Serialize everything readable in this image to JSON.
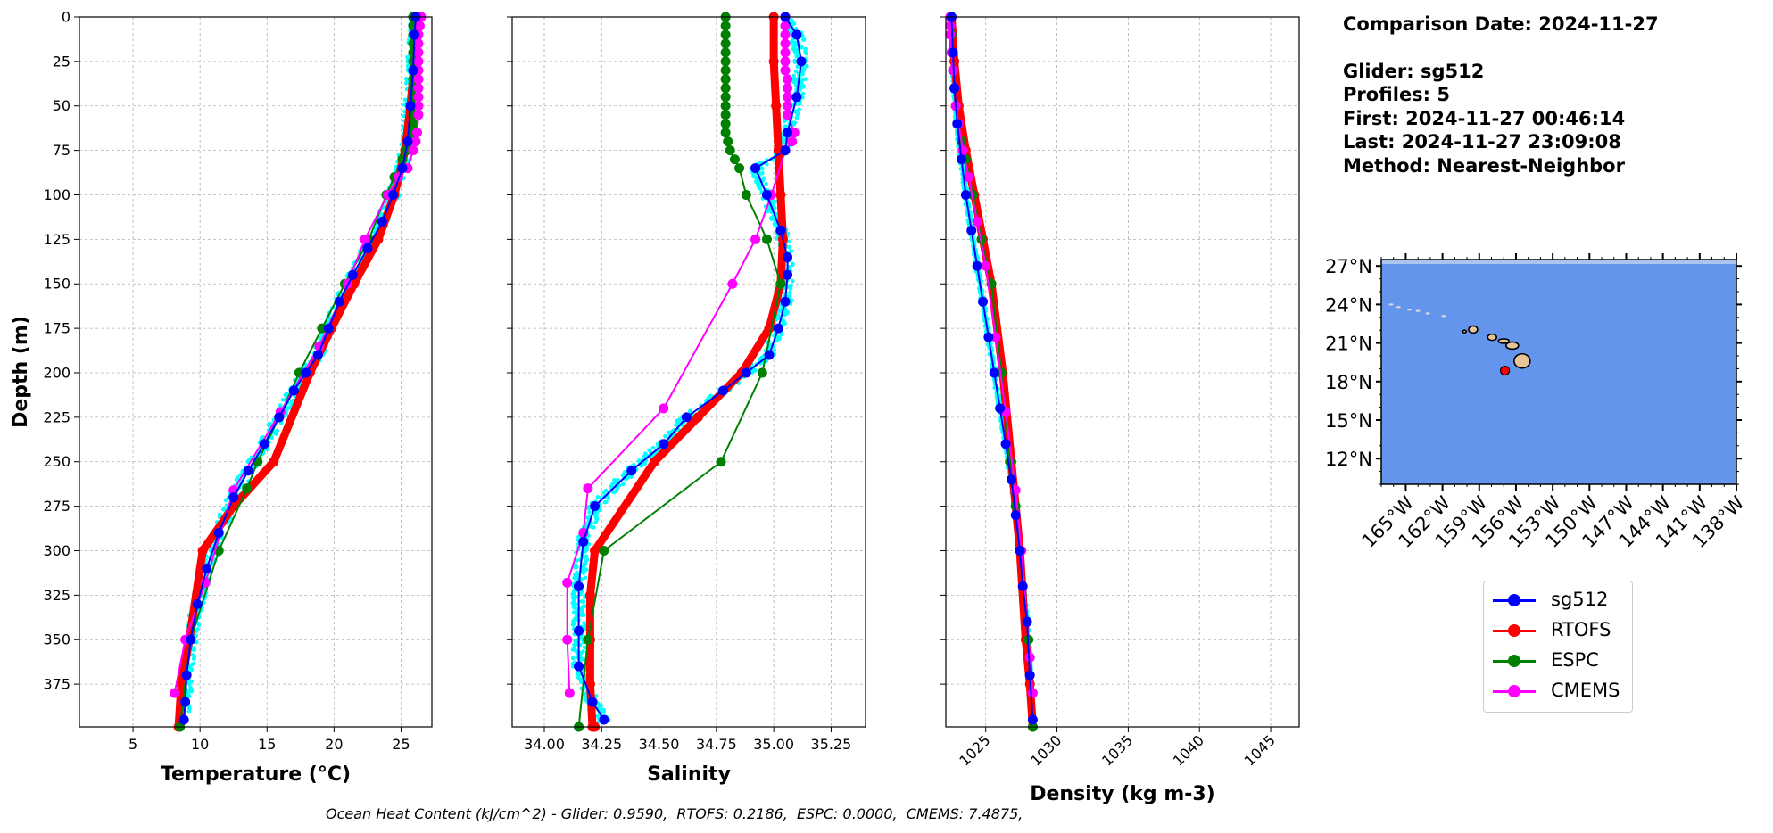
{
  "info": {
    "comparison_date": "Comparison Date: 2024-11-27",
    "glider": "Glider: sg512",
    "profiles": "Profiles: 5",
    "first": "First: 2024-11-27 00:46:14",
    "last": "Last: 2024-11-27 23:09:08",
    "method": "Method: Nearest-Neighbor"
  },
  "footer": "Ocean Heat Content (kJ/cm^2) - Glider: 0.9590,  RTOFS: 0.2186,  ESPC: 0.0000,  CMEMS: 7.4875,",
  "legend": [
    {
      "name": "sg512",
      "color": "#0000ff"
    },
    {
      "name": "RTOFS",
      "color": "#ff0000"
    },
    {
      "name": "ESPC",
      "color": "#008000"
    },
    {
      "name": "CMEMS",
      "color": "#ff00ff"
    }
  ],
  "colors": {
    "sg512": "#0000ff",
    "RTOFS": "#ff0000",
    "ESPC": "#008000",
    "CMEMS": "#ff00ff",
    "raw_glider": "#00ffff",
    "ocean": "#6495ed",
    "land": "#e8c49a"
  },
  "chart_data": [
    {
      "type": "line",
      "xlabel": "Temperature (°C)",
      "ylabel": "Depth (m)",
      "xlim": [
        1,
        27.3
      ],
      "ylim": [
        399,
        0
      ],
      "xticks": [
        "5",
        "10",
        "15",
        "20",
        "25"
      ],
      "yticks": [
        "0",
        "25",
        "50",
        "75",
        "100",
        "125",
        "150",
        "175",
        "200",
        "225",
        "250",
        "275",
        "300",
        "325",
        "350",
        "375"
      ],
      "grid": true,
      "series": [
        {
          "name": "sg512",
          "x": [
            26.1,
            26.0,
            25.9,
            25.7,
            25.5,
            25.1,
            24.4,
            23.6,
            22.5,
            21.4,
            20.4,
            19.6,
            18.8,
            17.9,
            17.0,
            15.9,
            14.8,
            13.6,
            12.5,
            11.4,
            10.5,
            9.8,
            9.3,
            9.0,
            8.9,
            8.8
          ],
          "y": [
            0,
            10,
            30,
            50,
            70,
            85,
            100,
            115,
            130,
            145,
            160,
            175,
            190,
            200,
            210,
            225,
            240,
            255,
            270,
            290,
            310,
            330,
            350,
            370,
            385,
            395
          ]
        },
        {
          "name": "RTOFS",
          "x": [
            26.1,
            26.0,
            25.7,
            25.3,
            24.5,
            23.3,
            21.5,
            19.8,
            18.2,
            15.5,
            12.5,
            10.2,
            9.2,
            8.6,
            8.4
          ],
          "y": [
            0,
            25,
            50,
            75,
            100,
            125,
            150,
            175,
            200,
            250,
            275,
            300,
            350,
            375,
            399
          ]
        },
        {
          "name": "ESPC",
          "x": [
            25.9,
            25.9,
            25.9,
            25.9,
            25.9,
            25.9,
            25.9,
            25.9,
            25.9,
            25.9,
            25.9,
            25.9,
            25.9,
            25.8,
            25.6,
            25.4,
            25.1,
            24.5,
            23.9,
            22.6,
            20.8,
            19.1,
            17.4,
            15.9,
            14.3,
            13.5,
            11.4,
            9.3,
            8.5
          ],
          "y": [
            0,
            5,
            10,
            15,
            20,
            25,
            30,
            35,
            40,
            45,
            50,
            55,
            60,
            65,
            70,
            75,
            80,
            90,
            100,
            125,
            150,
            175,
            200,
            225,
            250,
            265,
            300,
            350,
            399
          ]
        },
        {
          "name": "CMEMS",
          "x": [
            26.5,
            26.4,
            26.3,
            26.3,
            26.3,
            26.3,
            26.3,
            26.3,
            26.3,
            26.3,
            26.3,
            26.3,
            26.2,
            26.1,
            25.9,
            25.5,
            24.8,
            24.0,
            22.3,
            21.0,
            18.9,
            16.0,
            12.5,
            10.4,
            8.9,
            8.1
          ],
          "y": [
            0,
            5,
            10,
            15,
            20,
            25,
            30,
            35,
            40,
            45,
            50,
            55,
            65,
            70,
            75,
            85,
            90,
            100,
            125,
            150,
            185,
            222,
            266,
            318,
            350,
            380
          ]
        }
      ]
    },
    {
      "type": "line",
      "xlabel": "Salinity",
      "xlim": [
        33.86,
        35.4
      ],
      "ylim": [
        399,
        0
      ],
      "xticks": [
        "34.00",
        "34.25",
        "34.50",
        "34.75",
        "35.00",
        "35.25"
      ],
      "grid": true,
      "series": [
        {
          "name": "sg512",
          "x": [
            35.05,
            35.1,
            35.12,
            35.1,
            35.06,
            35.05,
            34.92,
            34.97,
            35.03,
            35.06,
            35.06,
            35.05,
            35.02,
            34.98,
            34.88,
            34.78,
            34.62,
            34.52,
            34.38,
            34.22,
            34.17,
            34.15,
            34.15,
            34.15,
            34.21,
            34.26
          ],
          "y": [
            0,
            10,
            25,
            45,
            65,
            75,
            85,
            100,
            120,
            135,
            145,
            160,
            175,
            190,
            200,
            210,
            225,
            240,
            255,
            275,
            295,
            320,
            345,
            365,
            385,
            395
          ]
        },
        {
          "name": "RTOFS",
          "x": [
            35.0,
            35.0,
            35.01,
            35.02,
            35.03,
            35.04,
            35.03,
            34.98,
            34.86,
            34.67,
            34.48,
            34.22,
            34.2,
            34.2,
            34.2,
            34.21,
            34.22
          ],
          "y": [
            0,
            25,
            50,
            75,
            100,
            125,
            150,
            175,
            200,
            225,
            250,
            300,
            325,
            350,
            375,
            399,
            399
          ]
        },
        {
          "name": "ESPC",
          "x": [
            34.79,
            34.79,
            34.79,
            34.79,
            34.79,
            34.79,
            34.79,
            34.79,
            34.79,
            34.79,
            34.79,
            34.79,
            34.79,
            34.79,
            34.8,
            34.81,
            34.83,
            34.85,
            34.88,
            34.97,
            35.03,
            34.95,
            34.77,
            34.26,
            34.19,
            34.15
          ],
          "y": [
            0,
            5,
            10,
            15,
            20,
            25,
            30,
            35,
            40,
            45,
            50,
            55,
            60,
            65,
            70,
            75,
            80,
            85,
            100,
            125,
            150,
            200,
            250,
            300,
            350,
            399
          ]
        },
        {
          "name": "CMEMS",
          "x": [
            35.05,
            35.05,
            35.05,
            35.05,
            35.05,
            35.05,
            35.05,
            35.06,
            35.06,
            35.06,
            35.06,
            35.06,
            35.09,
            35.08,
            35.05,
            34.99,
            34.92,
            34.82,
            34.52,
            34.19,
            34.17,
            34.1,
            34.1,
            34.11
          ],
          "y": [
            0,
            5,
            10,
            15,
            20,
            25,
            30,
            35,
            40,
            45,
            50,
            55,
            65,
            70,
            75,
            100,
            125,
            150,
            220,
            265,
            290,
            318,
            350,
            380
          ]
        }
      ]
    },
    {
      "type": "line",
      "xlabel": "Density (kg m-3)",
      "xlim": [
        1022.2,
        1047
      ],
      "ylim": [
        399,
        0
      ],
      "xticks": [
        "1025",
        "1030",
        "1035",
        "1040",
        "1045"
      ],
      "grid": true,
      "series": [
        {
          "name": "sg512",
          "x": [
            1022.6,
            1022.7,
            1022.8,
            1023.0,
            1023.3,
            1023.6,
            1024.0,
            1024.4,
            1024.8,
            1025.2,
            1025.6,
            1026.0,
            1026.4,
            1026.8,
            1027.1,
            1027.4,
            1027.6,
            1027.9,
            1028.1,
            1028.3
          ],
          "y": [
            0,
            20,
            40,
            60,
            80,
            100,
            120,
            140,
            160,
            180,
            200,
            220,
            240,
            260,
            280,
            300,
            320,
            340,
            370,
            395
          ]
        },
        {
          "name": "RTOFS",
          "x": [
            1022.6,
            1022.8,
            1023.1,
            1023.6,
            1024.2,
            1024.8,
            1025.4,
            1026.2,
            1026.8,
            1027.4,
            1027.8,
            1028.1,
            1028.3
          ],
          "y": [
            0,
            25,
            50,
            75,
            100,
            125,
            150,
            200,
            250,
            300,
            350,
            375,
            399
          ]
        },
        {
          "name": "ESPC",
          "x": [
            1022.6,
            1022.6,
            1022.6,
            1022.7,
            1022.8,
            1022.9,
            1023.1,
            1023.3,
            1023.6,
            1024.1,
            1024.7,
            1025.4,
            1026.1,
            1026.7,
            1027.1,
            1027.5,
            1028.0,
            1028.3
          ],
          "y": [
            0,
            10,
            20,
            30,
            40,
            50,
            60,
            70,
            80,
            100,
            125,
            150,
            200,
            250,
            275,
            300,
            350,
            399
          ]
        },
        {
          "name": "CMEMS",
          "x": [
            1022.5,
            1022.5,
            1022.5,
            1022.6,
            1022.7,
            1022.8,
            1022.9,
            1023.1,
            1023.4,
            1023.8,
            1024.4,
            1025.0,
            1025.7,
            1026.4,
            1027.1,
            1027.5,
            1027.9,
            1028.1,
            1028.3
          ],
          "y": [
            0,
            5,
            10,
            20,
            30,
            40,
            50,
            60,
            75,
            90,
            115,
            140,
            180,
            222,
            266,
            300,
            340,
            360,
            380
          ]
        }
      ]
    }
  ],
  "map": {
    "lat_ticks": [
      "27°N",
      "24°N",
      "21°N",
      "18°N",
      "15°N",
      "12°N"
    ],
    "lon_ticks": [
      "165°W",
      "162°W",
      "159°W",
      "156°W",
      "153°W",
      "150°W",
      "147°W",
      "144°W",
      "141°W",
      "138°W"
    ],
    "lat_values": [
      27,
      24,
      21,
      18,
      15,
      12
    ],
    "lon_values": [
      -165,
      -162,
      -159,
      -156,
      -153,
      -150,
      -147,
      -144,
      -141,
      -138
    ],
    "lat_range": [
      10,
      27.5
    ],
    "lon_range": [
      -167,
      -138
    ],
    "glider_position": {
      "lon": -155.9,
      "lat": 18.5
    }
  }
}
